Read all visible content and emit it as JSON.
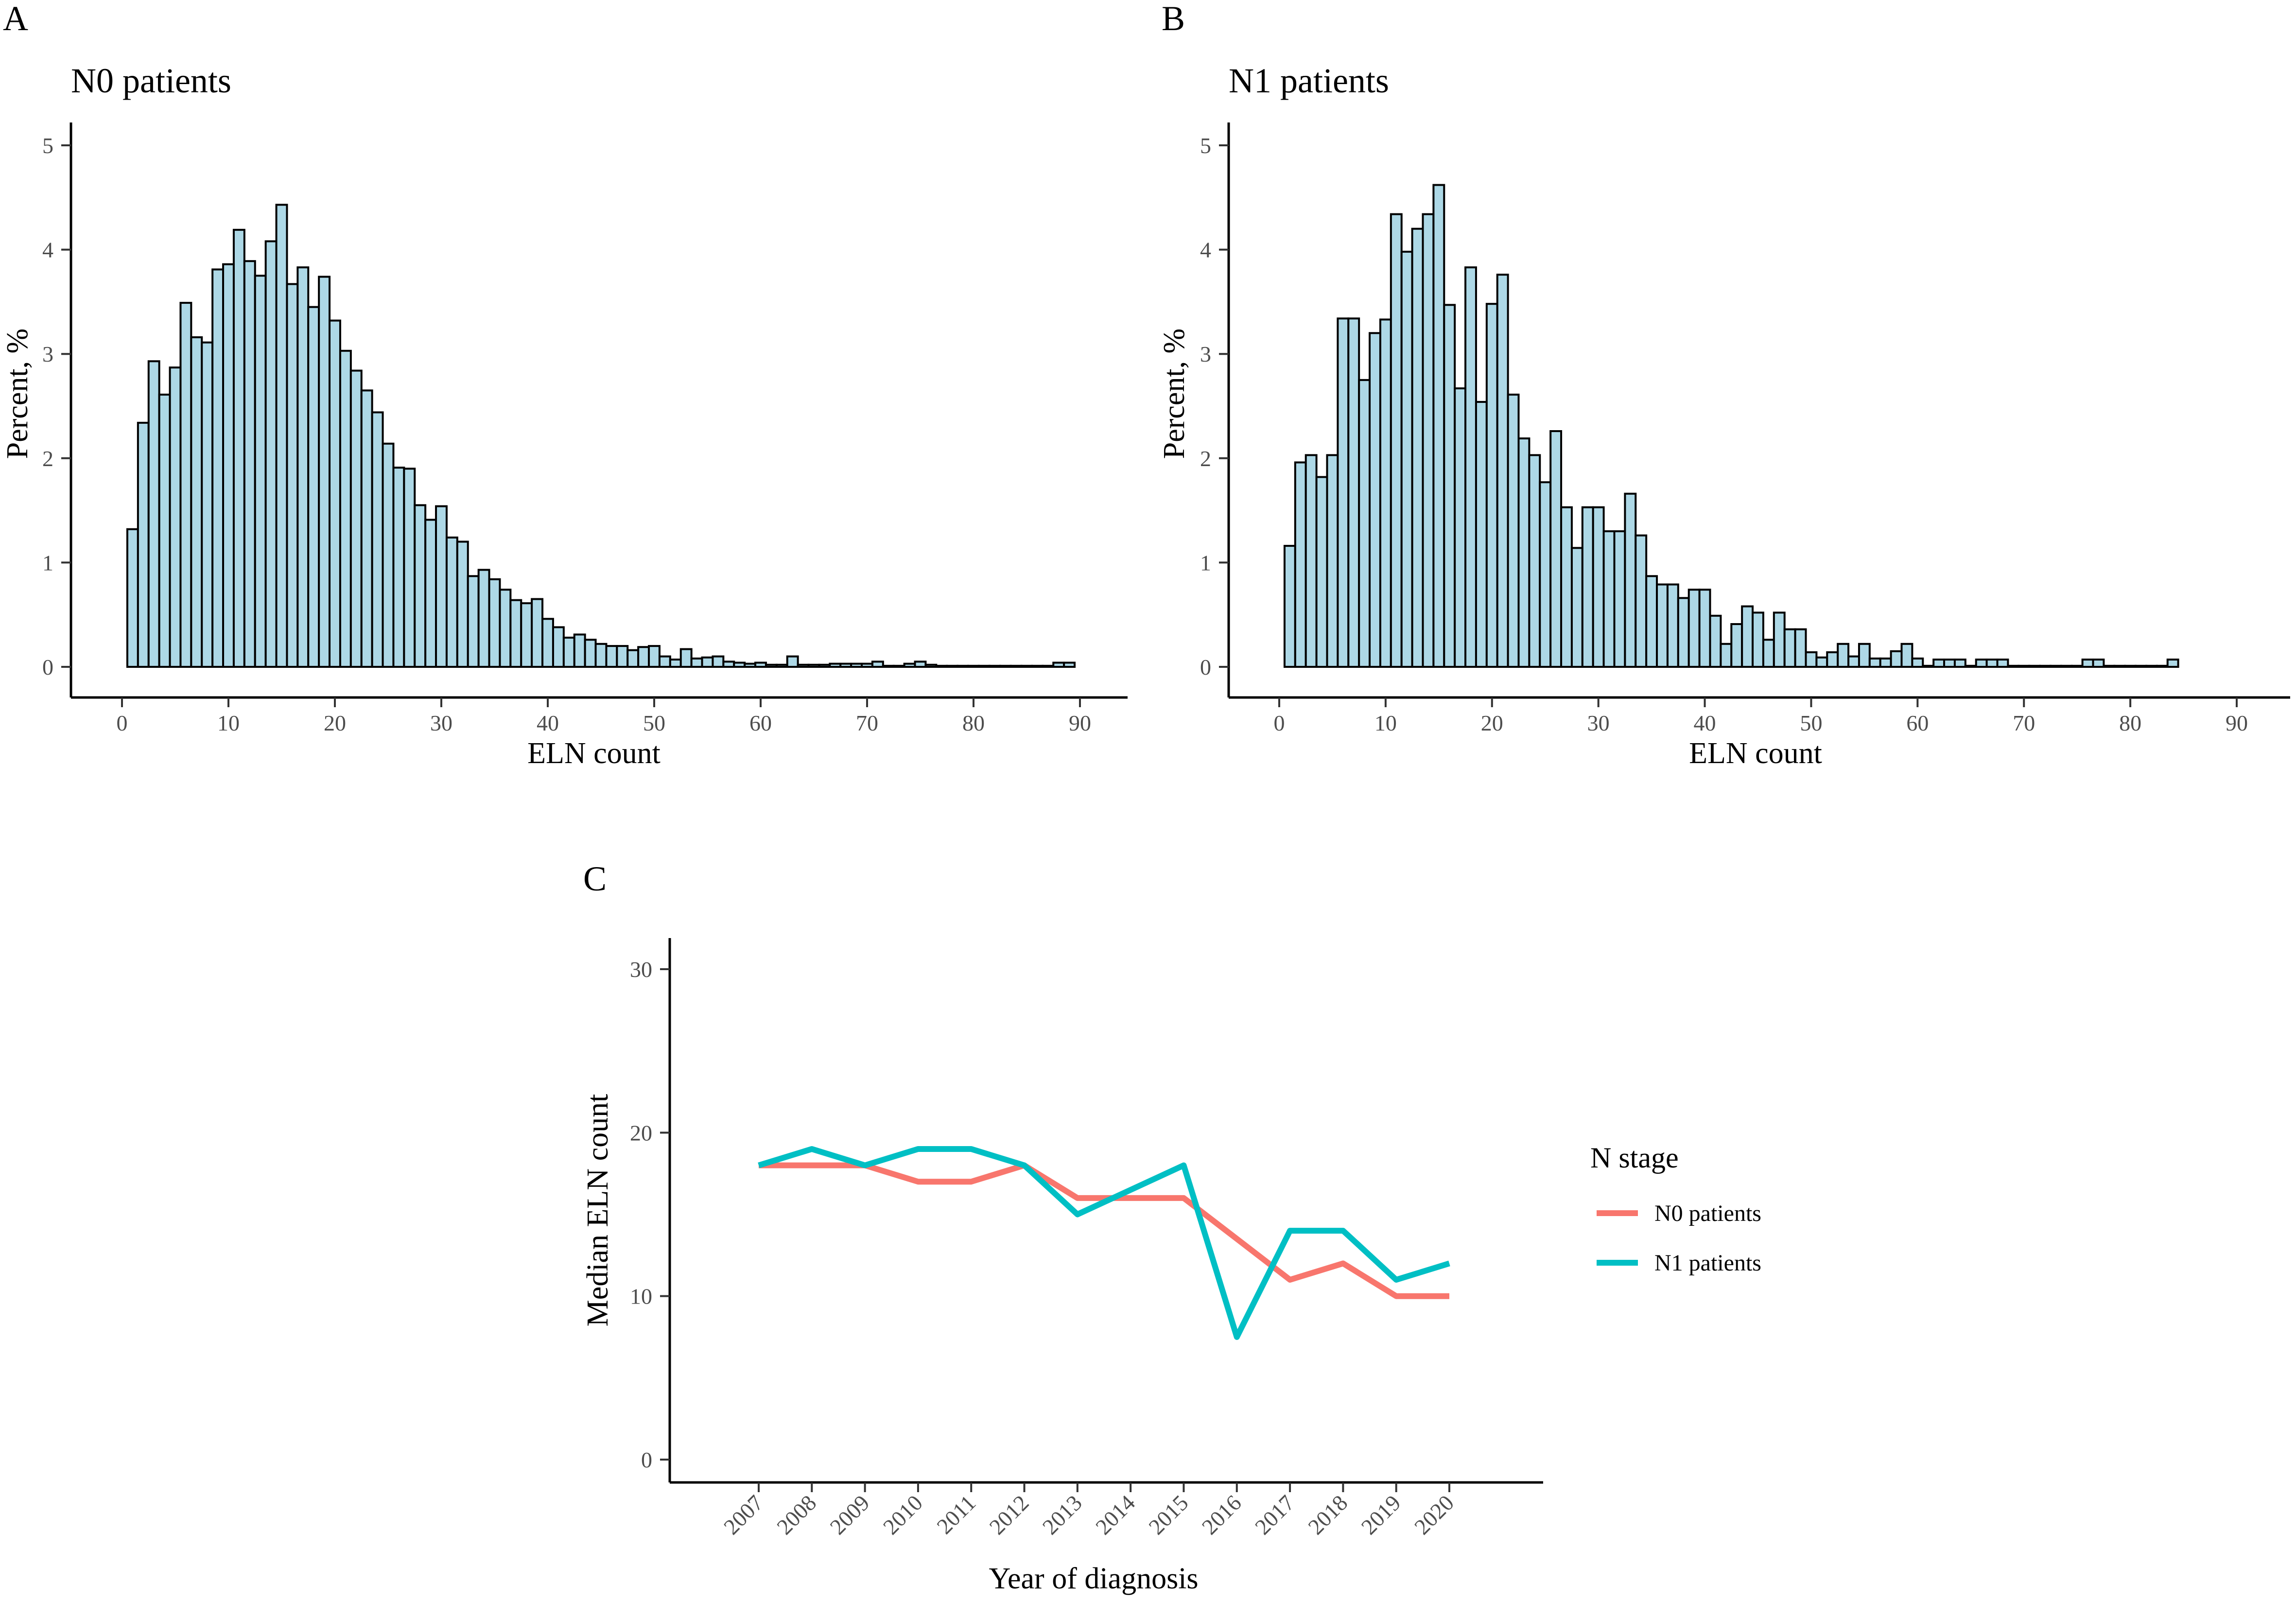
{
  "panel_a": {
    "letter": "A",
    "title": "N0 patients",
    "xlabel": "ELN count",
    "ylabel": "Percent, %",
    "bar_color": "#add8e6",
    "outline_color": "#000000"
  },
  "panel_b": {
    "letter": "B",
    "title": "N1 patients",
    "xlabel": "ELN count",
    "ylabel": "Percent, %",
    "bar_color": "#add8e6",
    "outline_color": "#000000"
  },
  "panel_c": {
    "letter": "C",
    "xlabel": "Year of diagnosis",
    "ylabel": "Median ELN count",
    "legend_title": "N stage",
    "legend_n0": "N0 patients",
    "legend_n1": "N1 patients",
    "n0_color": "#f8766d",
    "n1_color": "#00bfc4"
  },
  "chart_data": [
    {
      "type": "bar",
      "title": "N0 patients",
      "xlabel": "ELN count",
      "ylabel": "Percent, %",
      "xlim": [
        -5,
        91
      ],
      "ylim": [
        0,
        5
      ],
      "xticks": [
        0,
        10,
        20,
        30,
        40,
        50,
        60,
        70,
        80,
        90
      ],
      "yticks": [
        0,
        1,
        2,
        3,
        4,
        5
      ],
      "bin_width": 1,
      "x": [
        1,
        2,
        3,
        4,
        5,
        6,
        7,
        8,
        9,
        10,
        11,
        12,
        13,
        14,
        15,
        16,
        17,
        18,
        19,
        20,
        21,
        22,
        23,
        24,
        25,
        26,
        27,
        28,
        29,
        30,
        31,
        32,
        33,
        34,
        35,
        36,
        37,
        38,
        39,
        40,
        41,
        42,
        43,
        44,
        45,
        46,
        47,
        48,
        49,
        50,
        51,
        52,
        53,
        54,
        55,
        56,
        57,
        58,
        59,
        60,
        61,
        62,
        63,
        64,
        65,
        66,
        67,
        68,
        69,
        70,
        71,
        72,
        73,
        74,
        75,
        76,
        77,
        78,
        79,
        80,
        81,
        82,
        83,
        84,
        85,
        86,
        87,
        88,
        89
      ],
      "values": [
        1.32,
        2.34,
        2.93,
        2.61,
        2.87,
        3.49,
        3.16,
        3.11,
        3.81,
        3.86,
        4.19,
        3.89,
        3.75,
        4.08,
        4.43,
        3.67,
        3.83,
        3.45,
        3.74,
        3.32,
        3.03,
        2.84,
        2.65,
        2.44,
        2.14,
        1.91,
        1.9,
        1.55,
        1.41,
        1.54,
        1.24,
        1.2,
        0.87,
        0.93,
        0.84,
        0.74,
        0.64,
        0.61,
        0.65,
        0.46,
        0.38,
        0.28,
        0.31,
        0.26,
        0.22,
        0.2,
        0.2,
        0.16,
        0.19,
        0.2,
        0.1,
        0.07,
        0.17,
        0.08,
        0.09,
        0.1,
        0.05,
        0.04,
        0.03,
        0.04,
        0.02,
        0.02,
        0.1,
        0.02,
        0.02,
        0.02,
        0.03,
        0.03,
        0.03,
        0.03,
        0.05,
        0.01,
        0.01,
        0.03,
        0.05,
        0.02,
        0.01,
        0.01,
        0.01,
        0.01,
        0.01,
        0.01,
        0.01,
        0.01,
        0.01,
        0.01,
        0.01,
        0.04,
        0.04
      ]
    },
    {
      "type": "bar",
      "title": "N1 patients",
      "xlabel": "ELN count",
      "ylabel": "Percent, %",
      "xlim": [
        -5,
        91
      ],
      "ylim": [
        0,
        5
      ],
      "xticks": [
        0,
        10,
        20,
        30,
        40,
        50,
        60,
        70,
        80,
        90
      ],
      "yticks": [
        0,
        1,
        2,
        3,
        4,
        5
      ],
      "bin_width": 1,
      "x": [
        1,
        2,
        3,
        4,
        5,
        6,
        7,
        8,
        9,
        10,
        11,
        12,
        13,
        14,
        15,
        16,
        17,
        18,
        19,
        20,
        21,
        22,
        23,
        24,
        25,
        26,
        27,
        28,
        29,
        30,
        31,
        32,
        33,
        34,
        35,
        36,
        37,
        38,
        39,
        40,
        41,
        42,
        43,
        44,
        45,
        46,
        47,
        48,
        49,
        50,
        51,
        52,
        53,
        54,
        55,
        56,
        57,
        58,
        59,
        60,
        61,
        62,
        63,
        64,
        65,
        66,
        67,
        68,
        69,
        70,
        71,
        72,
        73,
        74,
        75,
        76,
        77,
        78,
        79,
        80,
        81,
        82,
        83,
        84
      ],
      "values": [
        1.16,
        1.96,
        2.03,
        1.82,
        2.03,
        3.34,
        3.34,
        2.75,
        3.2,
        3.33,
        4.34,
        3.98,
        4.2,
        4.34,
        4.62,
        3.47,
        2.67,
        3.83,
        2.54,
        3.48,
        3.76,
        2.61,
        2.19,
        2.03,
        1.77,
        2.26,
        1.53,
        1.14,
        1.53,
        1.53,
        1.3,
        1.3,
        1.66,
        1.26,
        0.87,
        0.79,
        0.79,
        0.66,
        0.74,
        0.74,
        0.49,
        0.22,
        0.41,
        0.58,
        0.52,
        0.26,
        0.52,
        0.36,
        0.36,
        0.14,
        0.09,
        0.14,
        0.22,
        0.1,
        0.22,
        0.08,
        0.08,
        0.15,
        0.22,
        0.08,
        0.01,
        0.07,
        0.07,
        0.07,
        0.01,
        0.07,
        0.07,
        0.07,
        0.01,
        0.01,
        0.01,
        0.01,
        0.01,
        0.01,
        0.01,
        0.07,
        0.07,
        0.01,
        0.01,
        0.01,
        0.01,
        0.01,
        0.01,
        0.07
      ]
    },
    {
      "type": "line",
      "xlabel": "Year of diagnosis",
      "ylabel": "Median ELN count",
      "ylim": [
        -1.2,
        30.5
      ],
      "yticks": [
        0,
        10,
        20,
        30
      ],
      "categories": [
        "2007",
        "2008",
        "2009",
        "2010",
        "2011",
        "2012",
        "2013",
        "2014",
        "2015",
        "2016",
        "2017",
        "2018",
        "2019",
        "2020"
      ],
      "legend_title": "N stage",
      "series": [
        {
          "name": "N0 patients",
          "color": "#f8766d",
          "values": [
            18,
            18,
            18,
            17,
            17,
            18,
            16,
            16,
            16,
            13.5,
            11,
            12,
            10,
            10
          ]
        },
        {
          "name": "N1 patients",
          "color": "#00bfc4",
          "values": [
            18,
            19,
            18,
            19,
            19,
            18,
            15,
            16.5,
            18,
            7.5,
            14,
            14,
            11,
            12
          ]
        }
      ]
    }
  ]
}
